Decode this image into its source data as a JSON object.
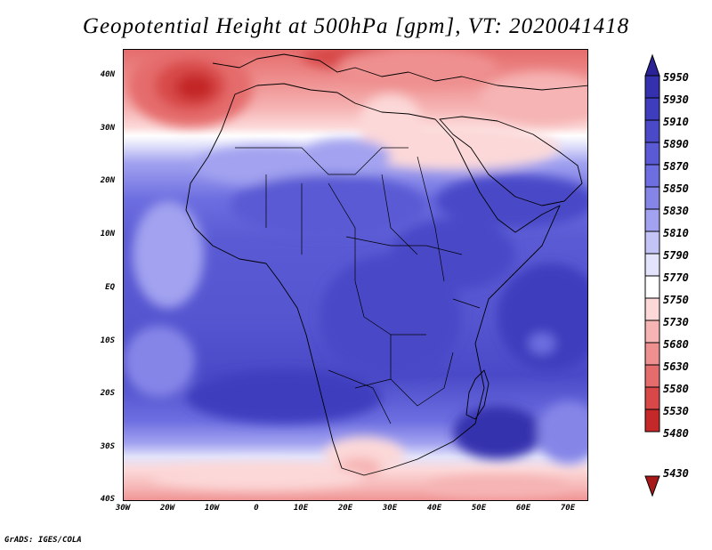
{
  "title": "Geopotential Height at 500hPa [gpm], VT: 2020041418",
  "credit": "GrADS: IGES/COLA",
  "map": {
    "lat_labels": [
      "40N",
      "30N",
      "20N",
      "10N",
      "EQ",
      "10S",
      "20S",
      "30S",
      "40S"
    ],
    "lon_labels": [
      "30W",
      "20W",
      "10W",
      "0",
      "10E",
      "20E",
      "30E",
      "40E",
      "50E",
      "60E",
      "70E"
    ],
    "region": "Africa"
  },
  "colorbar": {
    "levels": [
      "5950",
      "5930",
      "5910",
      "5890",
      "5870",
      "5850",
      "5830",
      "5810",
      "5790",
      "5770",
      "5750",
      "5730",
      "5680",
      "5630",
      "5580",
      "5530",
      "5480",
      "5430"
    ],
    "colors": [
      "#2a2296",
      "#3530ae",
      "#3e3dbe",
      "#4a4ac8",
      "#5a5ad4",
      "#6d6ee0",
      "#8585e8",
      "#a2a2f0",
      "#c3c3f6",
      "#e3e3fb",
      "#ffffff",
      "#fcd8d8",
      "#f6b4b4",
      "#ef9090",
      "#e56c6c",
      "#d84848",
      "#c42828",
      "#a81818"
    ]
  }
}
